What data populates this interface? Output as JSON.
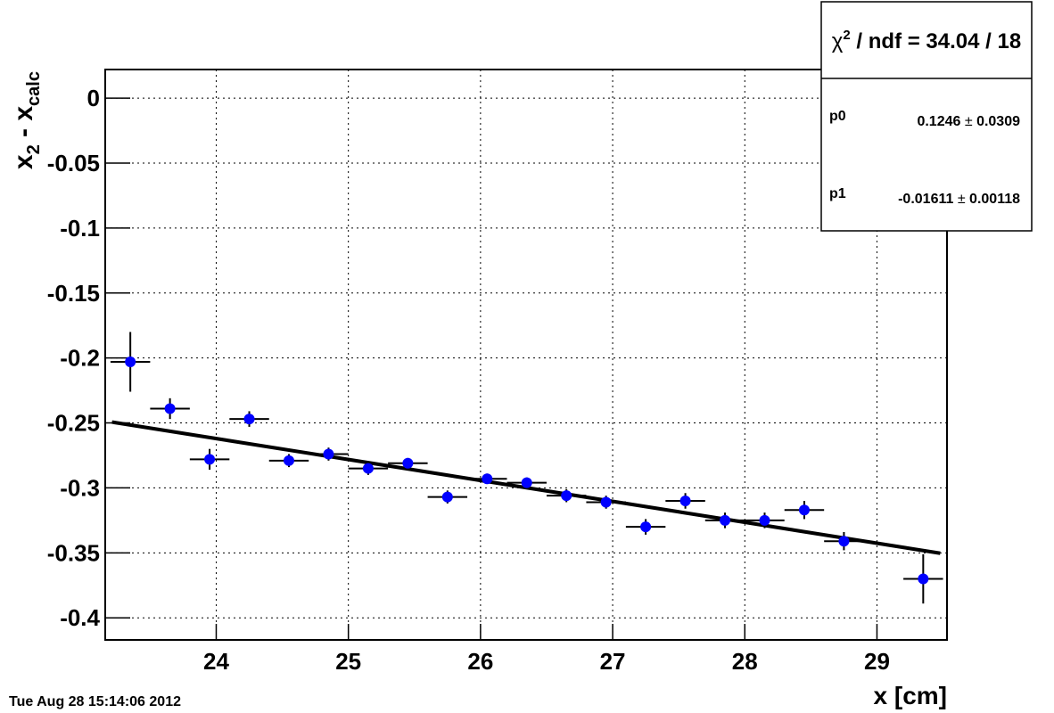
{
  "chart_data": {
    "type": "errorbar",
    "x": [
      23.35,
      23.65,
      23.95,
      24.25,
      24.55,
      24.85,
      25.15,
      25.45,
      25.75,
      26.05,
      26.35,
      26.65,
      26.95,
      27.25,
      27.55,
      27.85,
      28.15,
      28.45,
      28.75,
      29.35
    ],
    "y": [
      -0.203,
      -0.239,
      -0.278,
      -0.247,
      -0.279,
      -0.274,
      -0.285,
      -0.281,
      -0.307,
      -0.293,
      -0.296,
      -0.306,
      -0.311,
      -0.33,
      -0.31,
      -0.325,
      -0.325,
      -0.317,
      -0.341,
      -0.37
    ],
    "yerr": [
      0.023,
      0.008,
      0.008,
      0.006,
      0.005,
      0.005,
      0.005,
      0.004,
      0.005,
      0.004,
      0.004,
      0.005,
      0.005,
      0.006,
      0.006,
      0.006,
      0.006,
      0.007,
      0.007,
      0.019
    ],
    "xerr": [
      0.15,
      0.15,
      0.15,
      0.15,
      0.15,
      0.15,
      0.15,
      0.15,
      0.15,
      0.15,
      0.15,
      0.15,
      0.15,
      0.15,
      0.15,
      0.15,
      0.15,
      0.15,
      0.15,
      0.15
    ],
    "color": "#0000ff",
    "line_color": "#000000",
    "xlim": [
      23.16,
      29.53
    ],
    "ylim": [
      -0.417,
      0.022
    ],
    "xticks": [
      24,
      25,
      26,
      27,
      28,
      29
    ],
    "yticks": [
      0,
      -0.05,
      -0.1,
      -0.15,
      -0.2,
      -0.25,
      -0.3,
      -0.35,
      -0.4
    ],
    "grid": true,
    "xlabel": "x [cm]",
    "ylabel": {
      "a": "x",
      "a_sub": "2",
      "mid": " - x",
      "b_sub": "calc"
    },
    "stats": {
      "symbol": "χ",
      "sup": "2",
      "text": " / ndf = 34.04 / 18",
      "pm": "±",
      "params": [
        {
          "name": "p0",
          "value": 0.1246,
          "error": 0.0309
        },
        {
          "name": "p1",
          "value": -0.01611,
          "error": 0.00118
        }
      ]
    },
    "timestamp": "Tue Aug 28 15:14:06 2012"
  }
}
